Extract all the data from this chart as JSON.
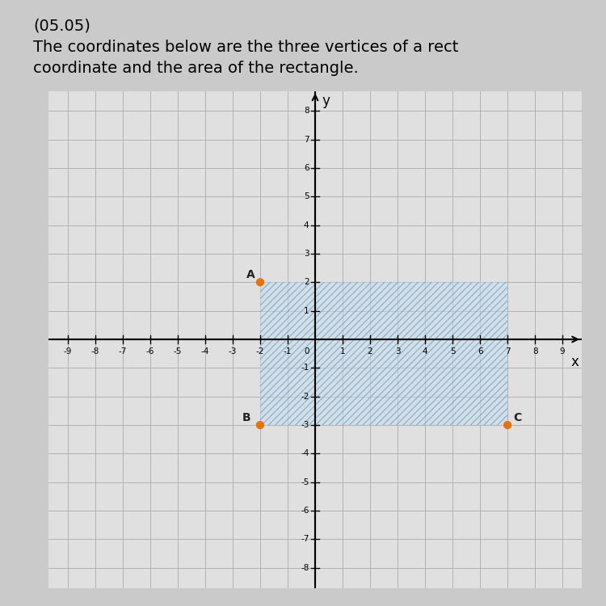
{
  "label1": "(05.05)",
  "label2": "The coordinates below are the three vertices of a rect-",
  "label3": "coordinate and the area of the rectangle.",
  "points": {
    "A": [
      -2,
      2
    ],
    "B": [
      -2,
      -3
    ],
    "C": [
      7,
      -3
    ]
  },
  "point_color": "#E8720C",
  "point_size": 55,
  "shade_color": "#C8DFF0",
  "shade_alpha": 0.5,
  "grid_color": "#AAAAAA",
  "axis_color": "#000000",
  "plot_bg": "#E0E0E0",
  "fig_bg": "#CACACA",
  "xlim": [
    -9.7,
    9.7
  ],
  "ylim": [
    -8.7,
    8.7
  ],
  "xticks": [
    -9,
    -8,
    -7,
    -6,
    -5,
    -4,
    -3,
    -2,
    -1,
    1,
    2,
    3,
    4,
    5,
    6,
    7,
    8,
    9
  ],
  "yticks": [
    -8,
    -7,
    -6,
    -5,
    -4,
    -3,
    -2,
    -1,
    1,
    2,
    3,
    4,
    5,
    6,
    7,
    8
  ],
  "font_size_tick": 7.5,
  "font_size_label": 12,
  "font_size_text": 14
}
